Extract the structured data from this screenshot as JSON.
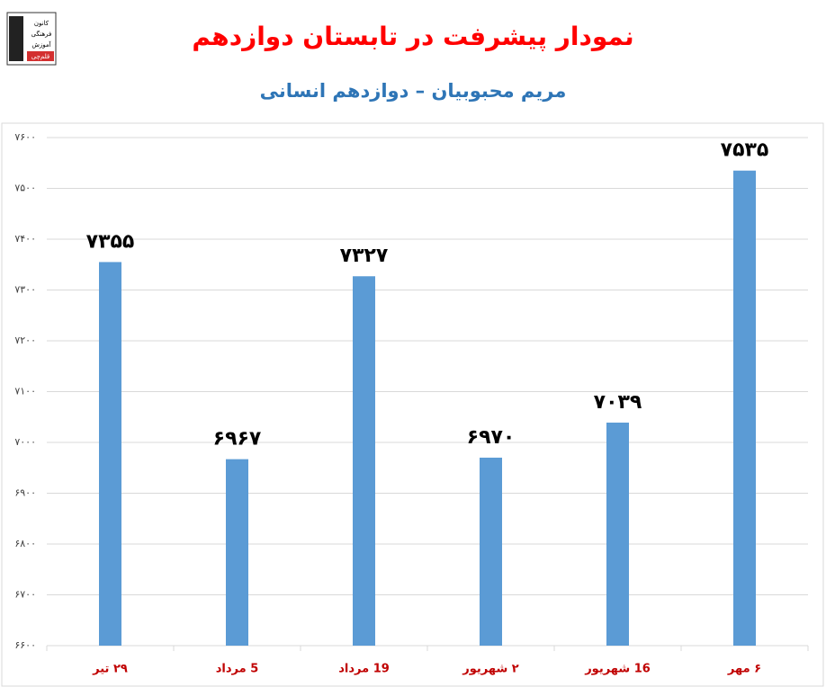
{
  "logo": [
    "کانون",
    "فرهنگی",
    "آموزش",
    "قلم‌چی"
  ],
  "chart_data": {
    "type": "bar",
    "title": "نمودار پیشرفت در تابستان دوازدهم",
    "subtitle": "مریم محبوبیان – دوازدهم انسانی",
    "categories": [
      "۲۹ تیر",
      "5 مرداد",
      "19 مرداد",
      "۲ شهریور",
      "16 شهریور",
      "۶ مهر"
    ],
    "values": [
      7355,
      6967,
      7327,
      6970,
      7039,
      7535
    ],
    "value_labels": [
      "۷۳۵۵",
      "۶۹۶۷",
      "۷۳۲۷",
      "۶۹۷۰",
      "۷۰۳۹",
      "۷۵۳۵"
    ],
    "color": "#5b9bd5",
    "ylim": [
      6600,
      7600
    ],
    "yticks": [
      {
        "value": 6600,
        "label": "۶۶۰۰"
      },
      {
        "value": 6700,
        "label": "۶۷۰۰"
      },
      {
        "value": 6800,
        "label": "۶۸۰۰"
      },
      {
        "value": 6900,
        "label": "۶۹۰۰"
      },
      {
        "value": 7000,
        "label": "۷۰۰۰"
      },
      {
        "value": 7100,
        "label": "۷۱۰۰"
      },
      {
        "value": 7200,
        "label": "۷۲۰۰"
      },
      {
        "value": 7300,
        "label": "۷۳۰۰"
      },
      {
        "value": 7400,
        "label": "۷۴۰۰"
      },
      {
        "value": 7500,
        "label": "۷۵۰۰"
      },
      {
        "value": 7600,
        "label": "۷۶۰۰"
      }
    ],
    "grid": true
  }
}
